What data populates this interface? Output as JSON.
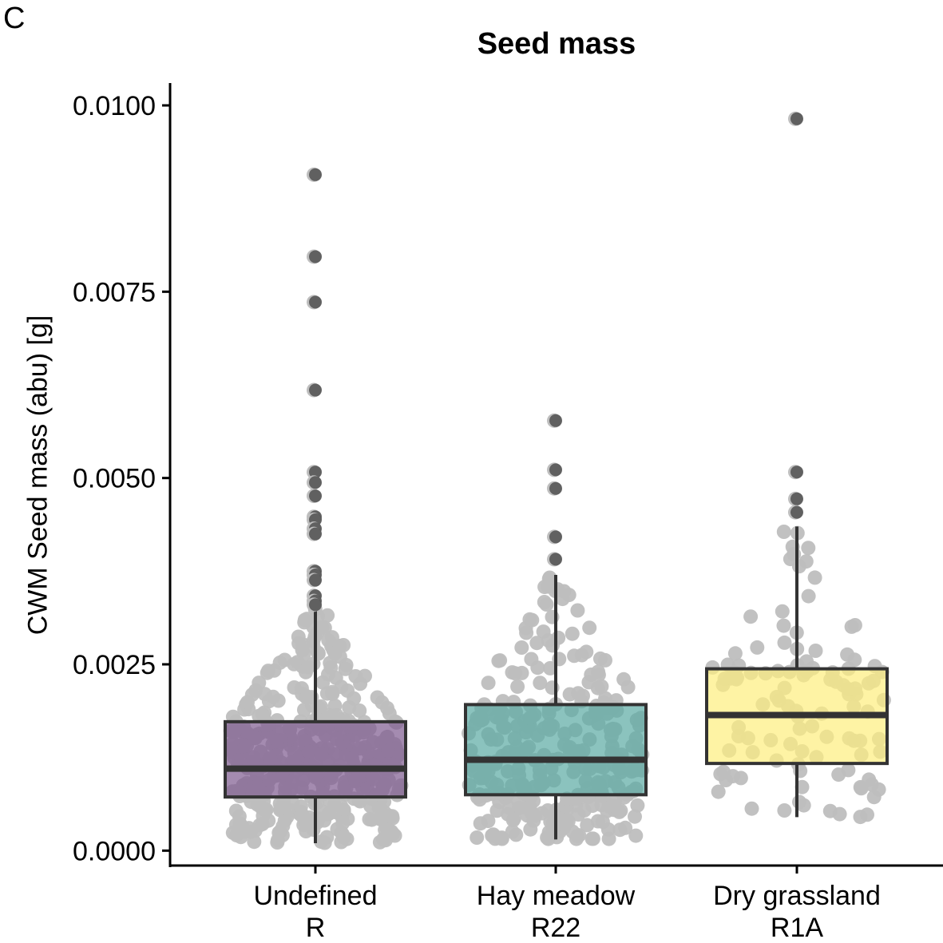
{
  "panel_label": "C",
  "chart_data": {
    "type": "boxplot",
    "title": "Seed mass",
    "xlabel": "",
    "ylabel": "CWM Seed mass (abu) [g]",
    "ylim": [
      -0.0002,
      0.0103
    ],
    "yticks": [
      "0.0000",
      "0.0025",
      "0.0050",
      "0.0075",
      "0.0100"
    ],
    "grid": false,
    "legend": "none",
    "categories": [
      {
        "line1": "Undefined",
        "line2": "R"
      },
      {
        "line1": "Hay meadow",
        "line2": "R22"
      },
      {
        "line1": "Dry grassland",
        "line2": "R1A"
      }
    ],
    "boxes": [
      {
        "whisker_low": 0.0001,
        "q1": 0.00072,
        "median": 0.0011,
        "q3": 0.00173,
        "whisker_high": 0.00325,
        "fill": "#7E5A8E",
        "outliers": [
          0.00907,
          0.00797,
          0.00736,
          0.00618,
          0.00508,
          0.00494,
          0.00476,
          0.00448,
          0.00444,
          0.00432,
          0.00425,
          0.00375,
          0.0037,
          0.00363,
          0.00342,
          0.00335,
          0.0033
        ]
      },
      {
        "whisker_low": 0.00015,
        "q1": 0.00075,
        "median": 0.00122,
        "q3": 0.00196,
        "whisker_high": 0.0037,
        "fill": "#5AA9A3",
        "outliers": [
          0.00577,
          0.00511,
          0.00486,
          0.00421,
          0.00391
        ]
      },
      {
        "whisker_low": 0.00045,
        "q1": 0.00117,
        "median": 0.00182,
        "q3": 0.00244,
        "whisker_high": 0.00435,
        "fill": "#FDEE7E",
        "outliers": [
          0.00982,
          0.00508,
          0.00472,
          0.00454
        ]
      }
    ],
    "colors": {
      "points": "#BEBEBE",
      "outliers": "#555555",
      "box_stroke": "#333333"
    }
  }
}
